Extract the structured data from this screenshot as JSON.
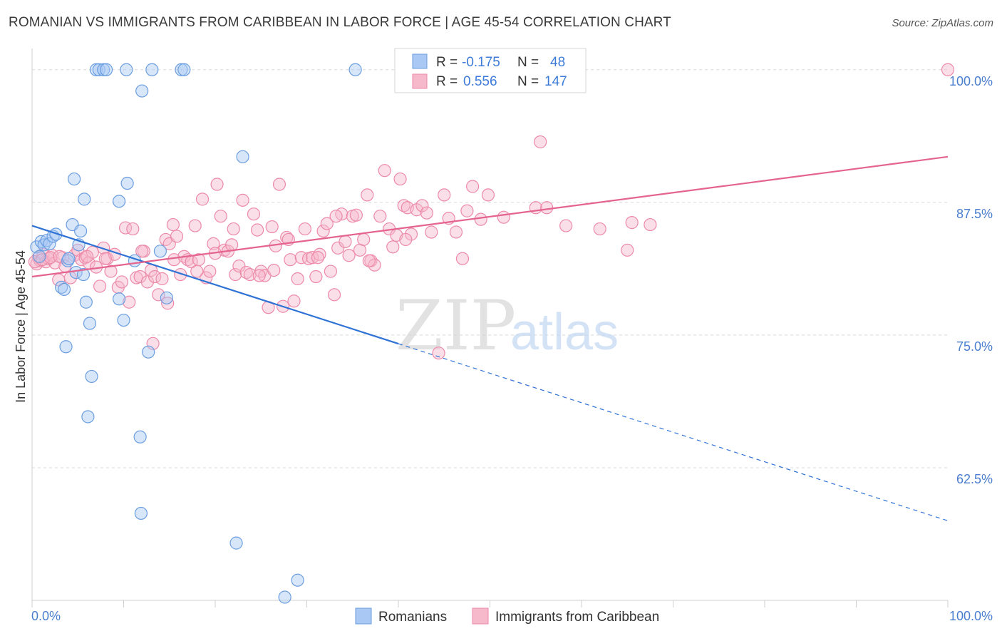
{
  "title": "ROMANIAN VS IMMIGRANTS FROM CARIBBEAN IN LABOR FORCE | AGE 45-54 CORRELATION CHART",
  "source": "Source: ZipAtlas.com",
  "watermark": {
    "zip": "ZIP",
    "atlas": "atlas"
  },
  "colors": {
    "romanians_fill": "#a9c8f3",
    "romanians_stroke": "#6b9ee0",
    "romanians_line": "#2f72d6",
    "caribbean_fill": "#f6b8cb",
    "caribbean_stroke": "#ec8aa9",
    "caribbean_line": "#e4648f",
    "axis_text": "#4a7ecf",
    "grid": "#d8d8d8"
  },
  "legend": {
    "rows": [
      {
        "r_label": "R = ",
        "r_value": "-0.175",
        "n_label": "N = ",
        "n_value": "48"
      },
      {
        "r_label": "R = ",
        "r_value": "0.556",
        "n_label": "N = ",
        "n_value": "147"
      }
    ]
  },
  "chart_data": {
    "type": "scatter",
    "title": "ROMANIAN VS IMMIGRANTS FROM CARIBBEAN IN LABOR FORCE | AGE 45-54 CORRELATION CHART",
    "xlabel": "",
    "ylabel": "In Labor Force | Age 45-54",
    "xlim": [
      0,
      100
    ],
    "ylim": [
      50,
      102
    ],
    "x_tick_labels": [
      "0.0%",
      "100.0%"
    ],
    "y_ticks": [
      62.5,
      75.0,
      87.5,
      100.0
    ],
    "y_tick_labels": [
      "62.5%",
      "75.0%",
      "87.5%",
      "100.0%"
    ],
    "grid": true,
    "legend_position": "top-center",
    "series": [
      {
        "name": "Romanians",
        "r": -0.175,
        "n": 48,
        "trend": {
          "x0": 0,
          "y0": 85.3,
          "x1": 100,
          "y1": 57.5,
          "solid_until_x": 40
        },
        "points": [
          [
            0.5,
            83.3
          ],
          [
            0.8,
            82.4
          ],
          [
            1.0,
            83.8
          ],
          [
            1.3,
            83.5
          ],
          [
            1.6,
            83.9
          ],
          [
            1.9,
            83.6
          ],
          [
            2.3,
            84.3
          ],
          [
            2.6,
            84.5
          ],
          [
            3.2,
            79.5
          ],
          [
            3.5,
            79.3
          ],
          [
            3.9,
            82.0
          ],
          [
            4.0,
            82.2
          ],
          [
            4.4,
            85.4
          ],
          [
            4.8,
            80.9
          ],
          [
            4.6,
            89.7
          ],
          [
            5.3,
            84.8
          ],
          [
            5.1,
            83.5
          ],
          [
            5.6,
            80.7
          ],
          [
            5.7,
            87.8
          ],
          [
            5.9,
            78.1
          ],
          [
            6.3,
            76.1
          ],
          [
            6.5,
            71.1
          ],
          [
            6.1,
            67.3
          ],
          [
            3.7,
            73.9
          ],
          [
            7.0,
            100.0
          ],
          [
            7.3,
            100.0
          ],
          [
            7.8,
            100.0
          ],
          [
            8.1,
            100.0
          ],
          [
            10.3,
            100.0
          ],
          [
            13.1,
            100.0
          ],
          [
            16.3,
            100.0
          ],
          [
            16.6,
            100.0
          ],
          [
            35.3,
            100.0
          ],
          [
            12.0,
            98.0
          ],
          [
            9.5,
            87.6
          ],
          [
            10.4,
            89.3
          ],
          [
            9.5,
            78.4
          ],
          [
            10.0,
            76.4
          ],
          [
            12.7,
            73.4
          ],
          [
            14.0,
            82.9
          ],
          [
            14.7,
            78.5
          ],
          [
            11.8,
            65.4
          ],
          [
            11.9,
            58.2
          ],
          [
            23.0,
            91.8
          ],
          [
            22.3,
            55.4
          ],
          [
            29.0,
            51.9
          ],
          [
            27.6,
            50.3
          ],
          [
            11.2,
            82.0
          ]
        ]
      },
      {
        "name": "Immigrants from Caribbean",
        "r": 0.556,
        "n": 147,
        "trend": {
          "x0": 0,
          "y0": 80.5,
          "x1": 100,
          "y1": 91.8
        },
        "points": [
          [
            0.5,
            81.7
          ],
          [
            0.7,
            82.3
          ],
          [
            0.9,
            82.0
          ],
          [
            1.2,
            82.6
          ],
          [
            1.5,
            81.9
          ],
          [
            1.8,
            82.2
          ],
          [
            2.2,
            82.5
          ],
          [
            2.5,
            81.8
          ],
          [
            2.9,
            80.2
          ],
          [
            3.3,
            82.3
          ],
          [
            3.6,
            81.5
          ],
          [
            4.2,
            80.4
          ],
          [
            4.6,
            82.5
          ],
          [
            5.0,
            83.0
          ],
          [
            5.4,
            82.1
          ],
          [
            5.8,
            82.3
          ],
          [
            6.2,
            81.8
          ],
          [
            6.6,
            82.8
          ],
          [
            7.0,
            81.4
          ],
          [
            7.4,
            79.6
          ],
          [
            7.8,
            83.2
          ],
          [
            8.2,
            82.2
          ],
          [
            8.6,
            81.0
          ],
          [
            9.0,
            82.6
          ],
          [
            9.4,
            79.5
          ],
          [
            9.8,
            80.0
          ],
          [
            10.2,
            85.1
          ],
          [
            10.6,
            78.1
          ],
          [
            11.0,
            85.0
          ],
          [
            11.4,
            80.4
          ],
          [
            11.8,
            80.5
          ],
          [
            12.2,
            82.9
          ],
          [
            12.6,
            80.0
          ],
          [
            13.0,
            81.1
          ],
          [
            13.4,
            80.5
          ],
          [
            13.8,
            78.8
          ],
          [
            14.2,
            80.3
          ],
          [
            14.6,
            84.0
          ],
          [
            15.0,
            83.6
          ],
          [
            15.4,
            85.4
          ],
          [
            15.8,
            84.3
          ],
          [
            16.2,
            80.7
          ],
          [
            16.6,
            82.4
          ],
          [
            17.0,
            82.1
          ],
          [
            17.4,
            81.9
          ],
          [
            17.8,
            85.3
          ],
          [
            18.2,
            82.1
          ],
          [
            18.6,
            87.8
          ],
          [
            19.0,
            80.4
          ],
          [
            19.4,
            81.0
          ],
          [
            19.8,
            83.6
          ],
          [
            20.2,
            89.2
          ],
          [
            20.6,
            86.2
          ],
          [
            21.0,
            83.0
          ],
          [
            21.4,
            82.9
          ],
          [
            21.8,
            83.5
          ],
          [
            22.2,
            80.7
          ],
          [
            22.6,
            81.5
          ],
          [
            23.0,
            87.7
          ],
          [
            23.4,
            80.9
          ],
          [
            23.8,
            80.7
          ],
          [
            24.2,
            86.4
          ],
          [
            24.6,
            84.9
          ],
          [
            25.0,
            81.0
          ],
          [
            25.4,
            80.6
          ],
          [
            25.8,
            77.6
          ],
          [
            26.2,
            85.2
          ],
          [
            26.6,
            83.4
          ],
          [
            27.0,
            89.2
          ],
          [
            27.4,
            77.7
          ],
          [
            27.8,
            84.2
          ],
          [
            28.2,
            82.1
          ],
          [
            28.6,
            78.2
          ],
          [
            29.0,
            80.3
          ],
          [
            29.4,
            82.3
          ],
          [
            29.8,
            85.0
          ],
          [
            30.2,
            82.2
          ],
          [
            30.6,
            82.3
          ],
          [
            31.0,
            80.5
          ],
          [
            31.4,
            82.6
          ],
          [
            31.8,
            84.8
          ],
          [
            32.2,
            85.5
          ],
          [
            32.6,
            81.0
          ],
          [
            33.0,
            78.8
          ],
          [
            33.4,
            83.2
          ],
          [
            33.8,
            86.4
          ],
          [
            34.2,
            83.8
          ],
          [
            34.6,
            82.5
          ],
          [
            35.0,
            86.2
          ],
          [
            35.4,
            86.3
          ],
          [
            35.8,
            83.0
          ],
          [
            36.2,
            84.0
          ],
          [
            36.6,
            88.2
          ],
          [
            37.0,
            82.0
          ],
          [
            37.4,
            81.6
          ],
          [
            38.0,
            86.2
          ],
          [
            38.5,
            90.5
          ],
          [
            39.0,
            85.0
          ],
          [
            39.4,
            83.3
          ],
          [
            39.8,
            84.4
          ],
          [
            40.2,
            89.7
          ],
          [
            40.6,
            87.2
          ],
          [
            41.0,
            87.0
          ],
          [
            41.4,
            84.5
          ],
          [
            42.0,
            86.8
          ],
          [
            42.6,
            87.2
          ],
          [
            43.1,
            86.5
          ],
          [
            43.6,
            84.7
          ],
          [
            44.4,
            73.3
          ],
          [
            45.0,
            88.2
          ],
          [
            45.5,
            86.0
          ],
          [
            46.3,
            84.7
          ],
          [
            47.0,
            82.2
          ],
          [
            47.5,
            86.7
          ],
          [
            48.1,
            89.0
          ],
          [
            49.0,
            85.9
          ],
          [
            49.8,
            88.2
          ],
          [
            51.5,
            86.1
          ],
          [
            55.0,
            87.0
          ],
          [
            55.5,
            93.2
          ],
          [
            56.2,
            87.0
          ],
          [
            58.3,
            85.3
          ],
          [
            62.0,
            85.0
          ],
          [
            65.0,
            83.0
          ],
          [
            65.5,
            85.6
          ],
          [
            67.5,
            85.4
          ],
          [
            100.0,
            100.0
          ],
          [
            0.3,
            81.9
          ],
          [
            1.1,
            82.1
          ],
          [
            2.0,
            82.3
          ],
          [
            3.0,
            82.4
          ],
          [
            12.0,
            82.9
          ],
          [
            13.2,
            74.2
          ],
          [
            14.8,
            78.0
          ],
          [
            20.0,
            82.7
          ],
          [
            24.8,
            80.6
          ],
          [
            26.4,
            81.1
          ],
          [
            36.8,
            82.0
          ],
          [
            18.0,
            81.0
          ],
          [
            22.0,
            85.0
          ],
          [
            31.2,
            82.3
          ],
          [
            40.8,
            84.0
          ],
          [
            8.0,
            82.2
          ],
          [
            6.0,
            82.4
          ],
          [
            15.5,
            82.1
          ],
          [
            28.0,
            84.0
          ],
          [
            33.2,
            86.2
          ]
        ]
      }
    ]
  }
}
